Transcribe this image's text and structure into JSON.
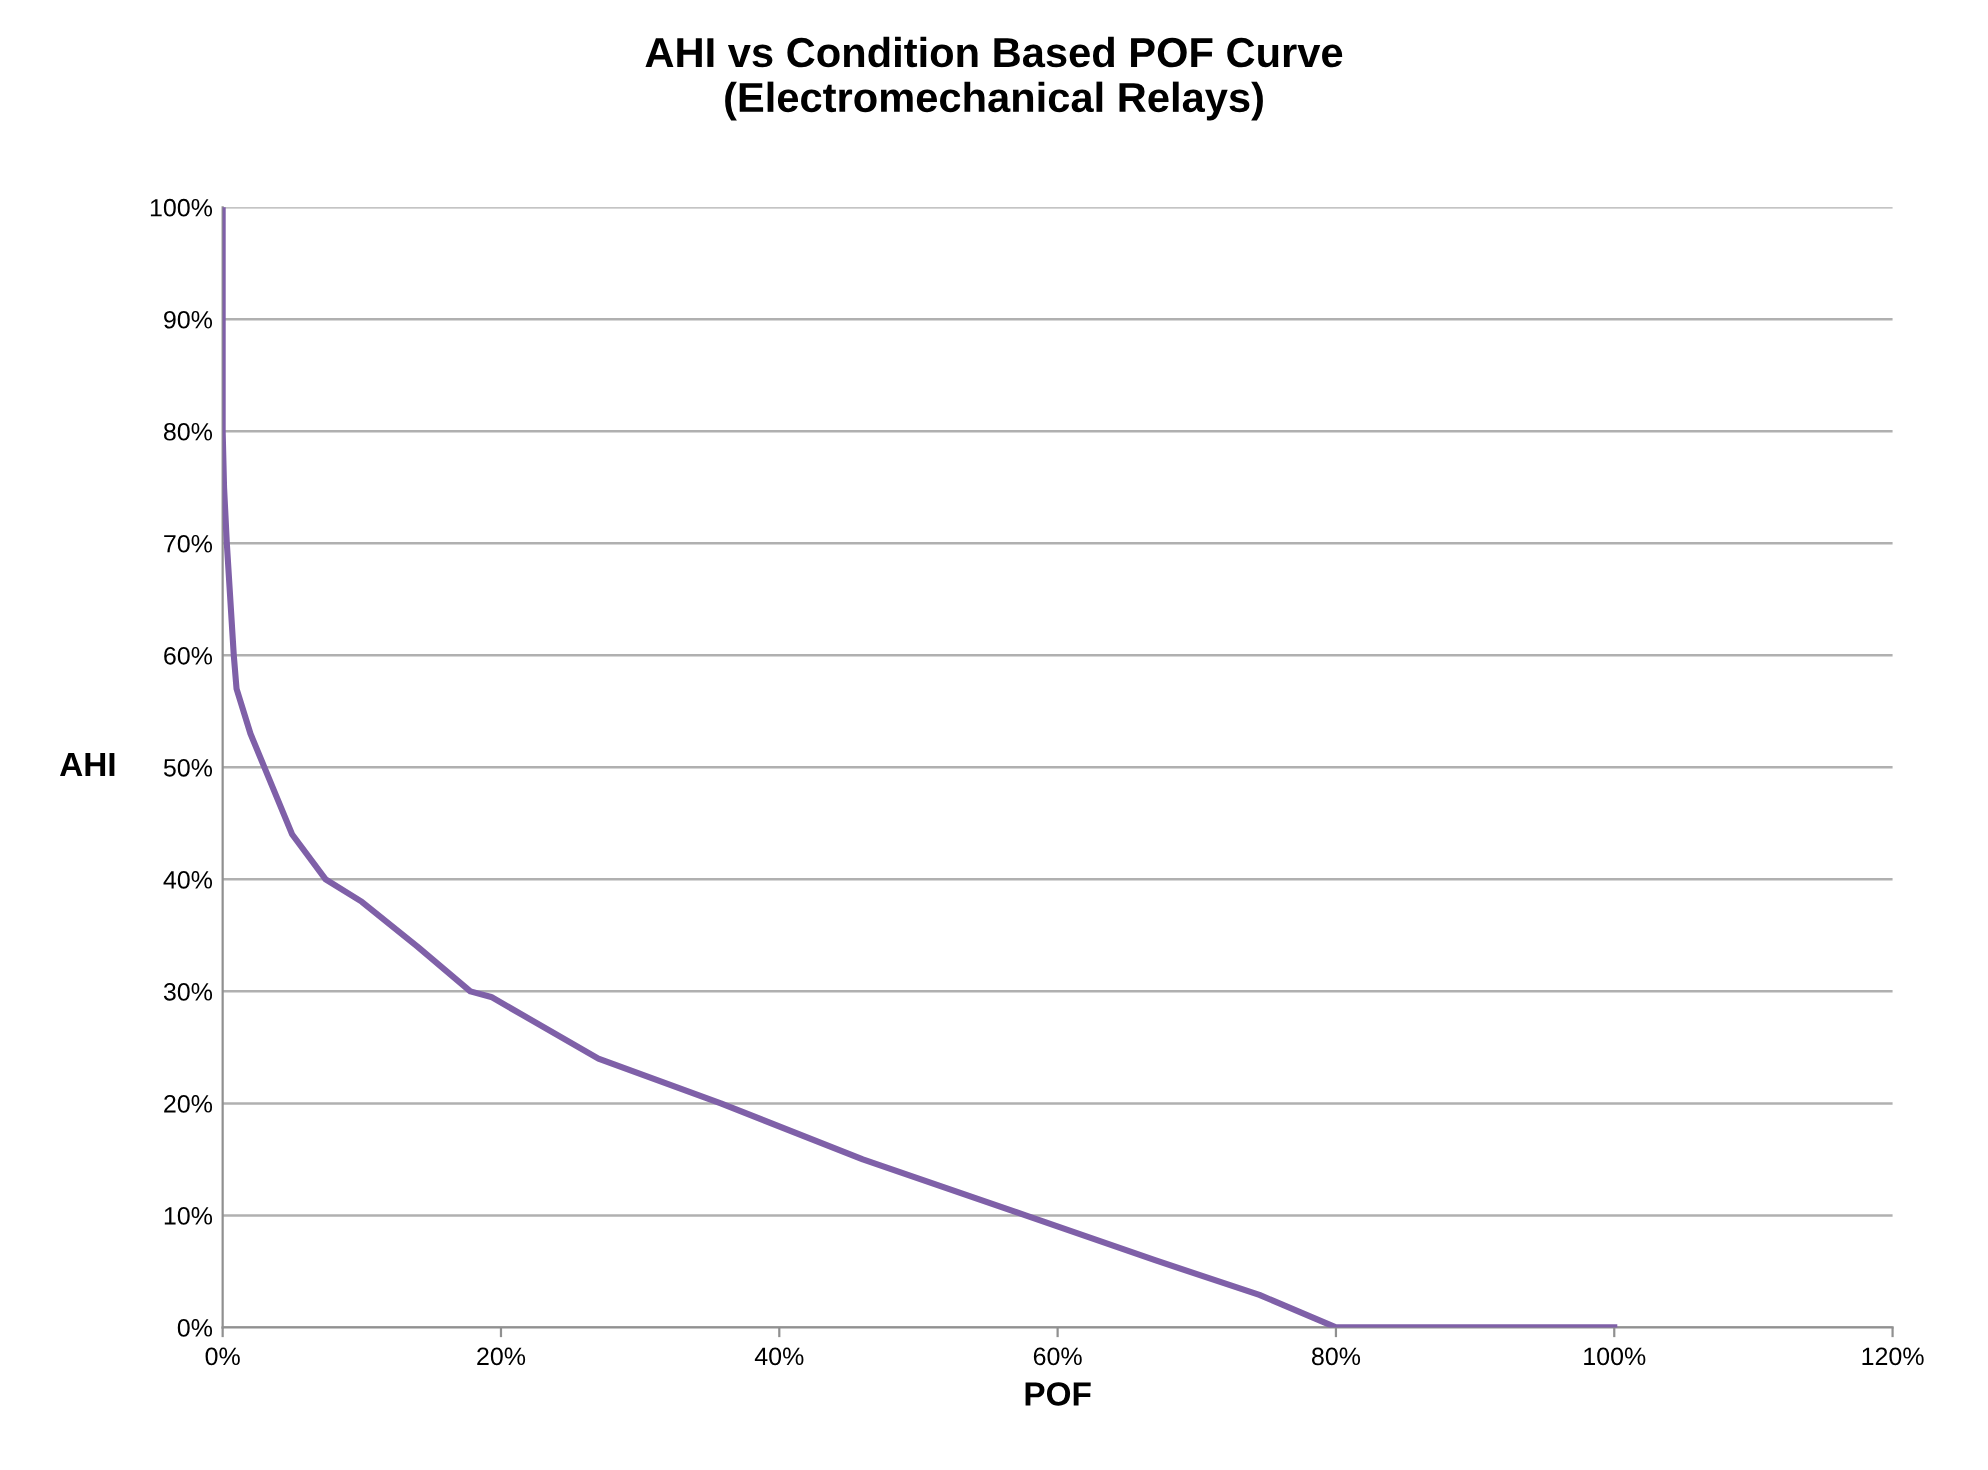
{
  "chart_data": {
    "type": "line",
    "title": "AHI vs Condition Based POF Curve\n(Electromechanical Relays)",
    "xlabel": "POF",
    "ylabel": "AHI",
    "x": [
      0,
      0,
      0.1,
      0.3,
      0.8,
      1,
      2,
      3,
      5,
      7.4,
      10,
      14,
      17.8,
      19.3,
      27,
      35.8,
      46,
      57.7,
      67,
      74.5,
      80,
      100
    ],
    "series": [
      {
        "color": "#7f60a8",
        "values": [
          100,
          80,
          75,
          70,
          60,
          57,
          53,
          50,
          44,
          40,
          38,
          34,
          30,
          29.5,
          24,
          20,
          15,
          10,
          6,
          2.9,
          0,
          0
        ]
      }
    ],
    "xlim": [
      0,
      120
    ],
    "ylim": [
      0,
      100
    ],
    "xticks": [
      {
        "value": 0,
        "label": "0%"
      },
      {
        "value": 20,
        "label": "20%"
      },
      {
        "value": 40,
        "label": "40%"
      },
      {
        "value": 60,
        "label": "60%"
      },
      {
        "value": 80,
        "label": "80%"
      },
      {
        "value": 100,
        "label": "100%"
      },
      {
        "value": 120,
        "label": "120%"
      }
    ],
    "yticks": [
      {
        "value": 0,
        "label": "0%"
      },
      {
        "value": 10,
        "label": "10%"
      },
      {
        "value": 20,
        "label": "20%"
      },
      {
        "value": 30,
        "label": "30%"
      },
      {
        "value": 40,
        "label": "40%"
      },
      {
        "value": 50,
        "label": "50%"
      },
      {
        "value": 60,
        "label": "60%"
      },
      {
        "value": 70,
        "label": "70%"
      },
      {
        "value": 80,
        "label": "80%"
      },
      {
        "value": 90,
        "label": "90%"
      },
      {
        "value": 100,
        "label": "100%"
      }
    ],
    "grid": "y",
    "marker": "none",
    "line_style": "solid"
  }
}
